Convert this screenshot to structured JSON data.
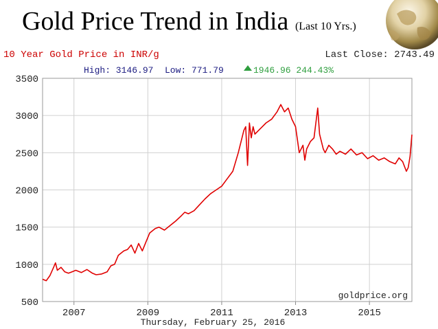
{
  "slide": {
    "title": "Gold Price Trend in India",
    "subtitle": "(Last 10 Yrs.)"
  },
  "colors": {
    "title_red": "#cc0000",
    "line_red": "#e00000",
    "high_low_blue": "#1a1a80",
    "gain_green": "#2e9e3e",
    "grid": "#d0d0d0",
    "text": "#222222"
  },
  "chart_data": {
    "type": "line",
    "title": "10 Year Gold Price in INR/g",
    "last_close_label": "Last Close: 2743.49",
    "high_label": "High: 3146.97",
    "low_label": "Low: 771.79",
    "change_label": "1946.96 244.43%",
    "change_icon": "up-triangle-icon",
    "xlabel": "Thursday, February 25, 2016",
    "ylabel": "",
    "watermark": "goldprice.org",
    "xlim": [
      2006.15,
      2016.15
    ],
    "ylim": [
      500,
      3500
    ],
    "yticks": [
      500,
      1000,
      1500,
      2000,
      2500,
      3000,
      3500
    ],
    "xticks": [
      2007,
      2009,
      2011,
      2013,
      2015
    ],
    "grid": true,
    "series": [
      {
        "name": "Gold Price INR/g",
        "x": [
          2006.15,
          2006.25,
          2006.35,
          2006.45,
          2006.5,
          2006.55,
          2006.65,
          2006.75,
          2006.85,
          2006.95,
          2007.05,
          2007.2,
          2007.35,
          2007.5,
          2007.6,
          2007.75,
          2007.9,
          2008.0,
          2008.1,
          2008.2,
          2008.35,
          2008.45,
          2008.55,
          2008.65,
          2008.75,
          2008.85,
          2008.95,
          2009.05,
          2009.2,
          2009.3,
          2009.45,
          2009.6,
          2009.75,
          2009.9,
          2010.0,
          2010.1,
          2010.25,
          2010.4,
          2010.55,
          2010.7,
          2010.85,
          2011.0,
          2011.15,
          2011.3,
          2011.45,
          2011.55,
          2011.6,
          2011.65,
          2011.7,
          2011.75,
          2011.8,
          2011.85,
          2011.9,
          2012.0,
          2012.1,
          2012.2,
          2012.35,
          2012.5,
          2012.6,
          2012.7,
          2012.8,
          2012.9,
          2013.0,
          2013.1,
          2013.2,
          2013.25,
          2013.3,
          2013.4,
          2013.5,
          2013.6,
          2013.65,
          2013.7,
          2013.75,
          2013.8,
          2013.9,
          2014.0,
          2014.1,
          2014.2,
          2014.35,
          2014.5,
          2014.65,
          2014.8,
          2014.95,
          2015.1,
          2015.25,
          2015.4,
          2015.55,
          2015.7,
          2015.8,
          2015.9,
          2016.0,
          2016.05,
          2016.1,
          2016.15
        ],
        "y": [
          800,
          780,
          850,
          960,
          1020,
          920,
          960,
          900,
          880,
          900,
          920,
          890,
          930,
          880,
          860,
          870,
          900,
          980,
          1000,
          1120,
          1180,
          1200,
          1260,
          1150,
          1280,
          1180,
          1300,
          1420,
          1480,
          1500,
          1460,
          1520,
          1580,
          1650,
          1700,
          1680,
          1720,
          1800,
          1880,
          1950,
          2000,
          2050,
          2150,
          2250,
          2500,
          2700,
          2800,
          2850,
          2330,
          2900,
          2700,
          2850,
          2750,
          2800,
          2850,
          2900,
          2950,
          3050,
          3146.97,
          3050,
          3100,
          2950,
          2850,
          2500,
          2600,
          2400,
          2550,
          2650,
          2700,
          3100,
          2750,
          2650,
          2550,
          2500,
          2600,
          2550,
          2480,
          2520,
          2480,
          2550,
          2470,
          2500,
          2420,
          2460,
          2400,
          2430,
          2380,
          2350,
          2430,
          2380,
          2250,
          2300,
          2450,
          2743.49
        ]
      }
    ]
  }
}
